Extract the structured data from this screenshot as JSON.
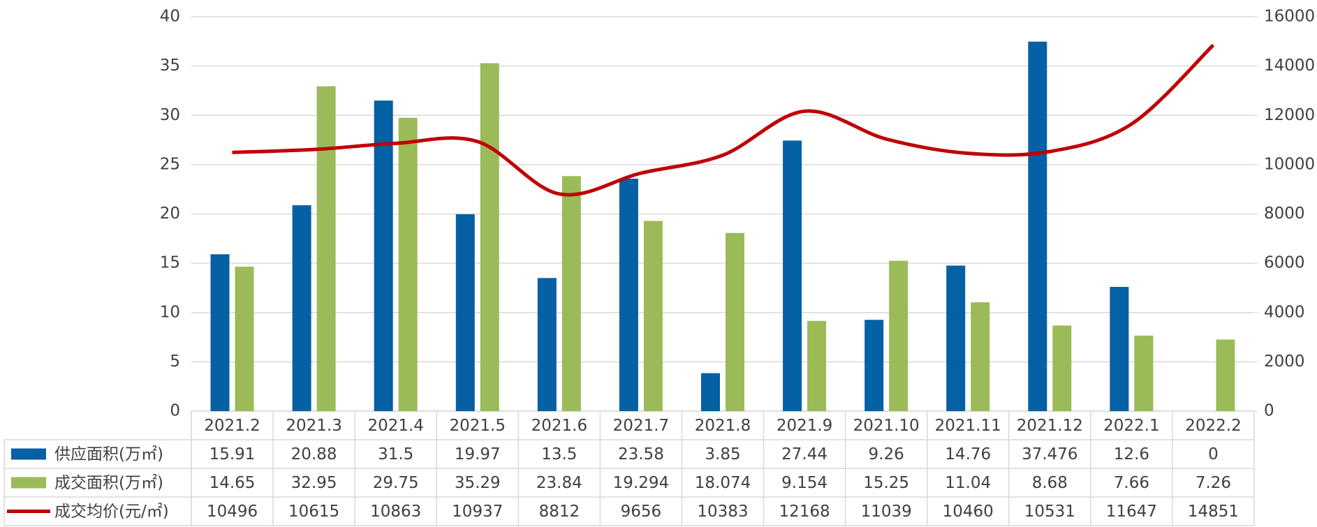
{
  "chart_data": {
    "type": "bar",
    "categories": [
      "2021.2",
      "2021.3",
      "2021.4",
      "2021.5",
      "2021.6",
      "2021.7",
      "2021.8",
      "2021.9",
      "2021.10",
      "2021.11",
      "2021.12",
      "2022.1",
      "2022.2"
    ],
    "series": [
      {
        "name": "供应面积(万㎡)",
        "color": "#0560a4",
        "values": [
          15.91,
          20.88,
          31.5,
          19.97,
          13.5,
          23.58,
          3.85,
          27.44,
          9.26,
          14.76,
          37.476,
          12.6,
          0
        ]
      },
      {
        "name": "成交面积(万㎡)",
        "color": "#9bbb59",
        "values": [
          14.65,
          32.95,
          29.75,
          35.29,
          23.84,
          19.294,
          18.074,
          9.154,
          15.25,
          11.04,
          8.68,
          7.66,
          7.26
        ]
      },
      {
        "name": "成交均价(元/㎡)",
        "color": "#c00000",
        "type": "line",
        "axis": "y2",
        "values": [
          10496,
          10615,
          10863,
          10937,
          8812,
          9656,
          10383,
          12168,
          11039,
          10460,
          10531,
          11647,
          14851
        ]
      }
    ],
    "ylim": [
      0,
      40
    ],
    "yticks": [
      0,
      5,
      10,
      15,
      20,
      25,
      30,
      35,
      40
    ],
    "y2lim": [
      0,
      16000
    ],
    "y2ticks": [
      0,
      2000,
      4000,
      6000,
      8000,
      10000,
      12000,
      14000,
      16000
    ],
    "grid": true
  }
}
